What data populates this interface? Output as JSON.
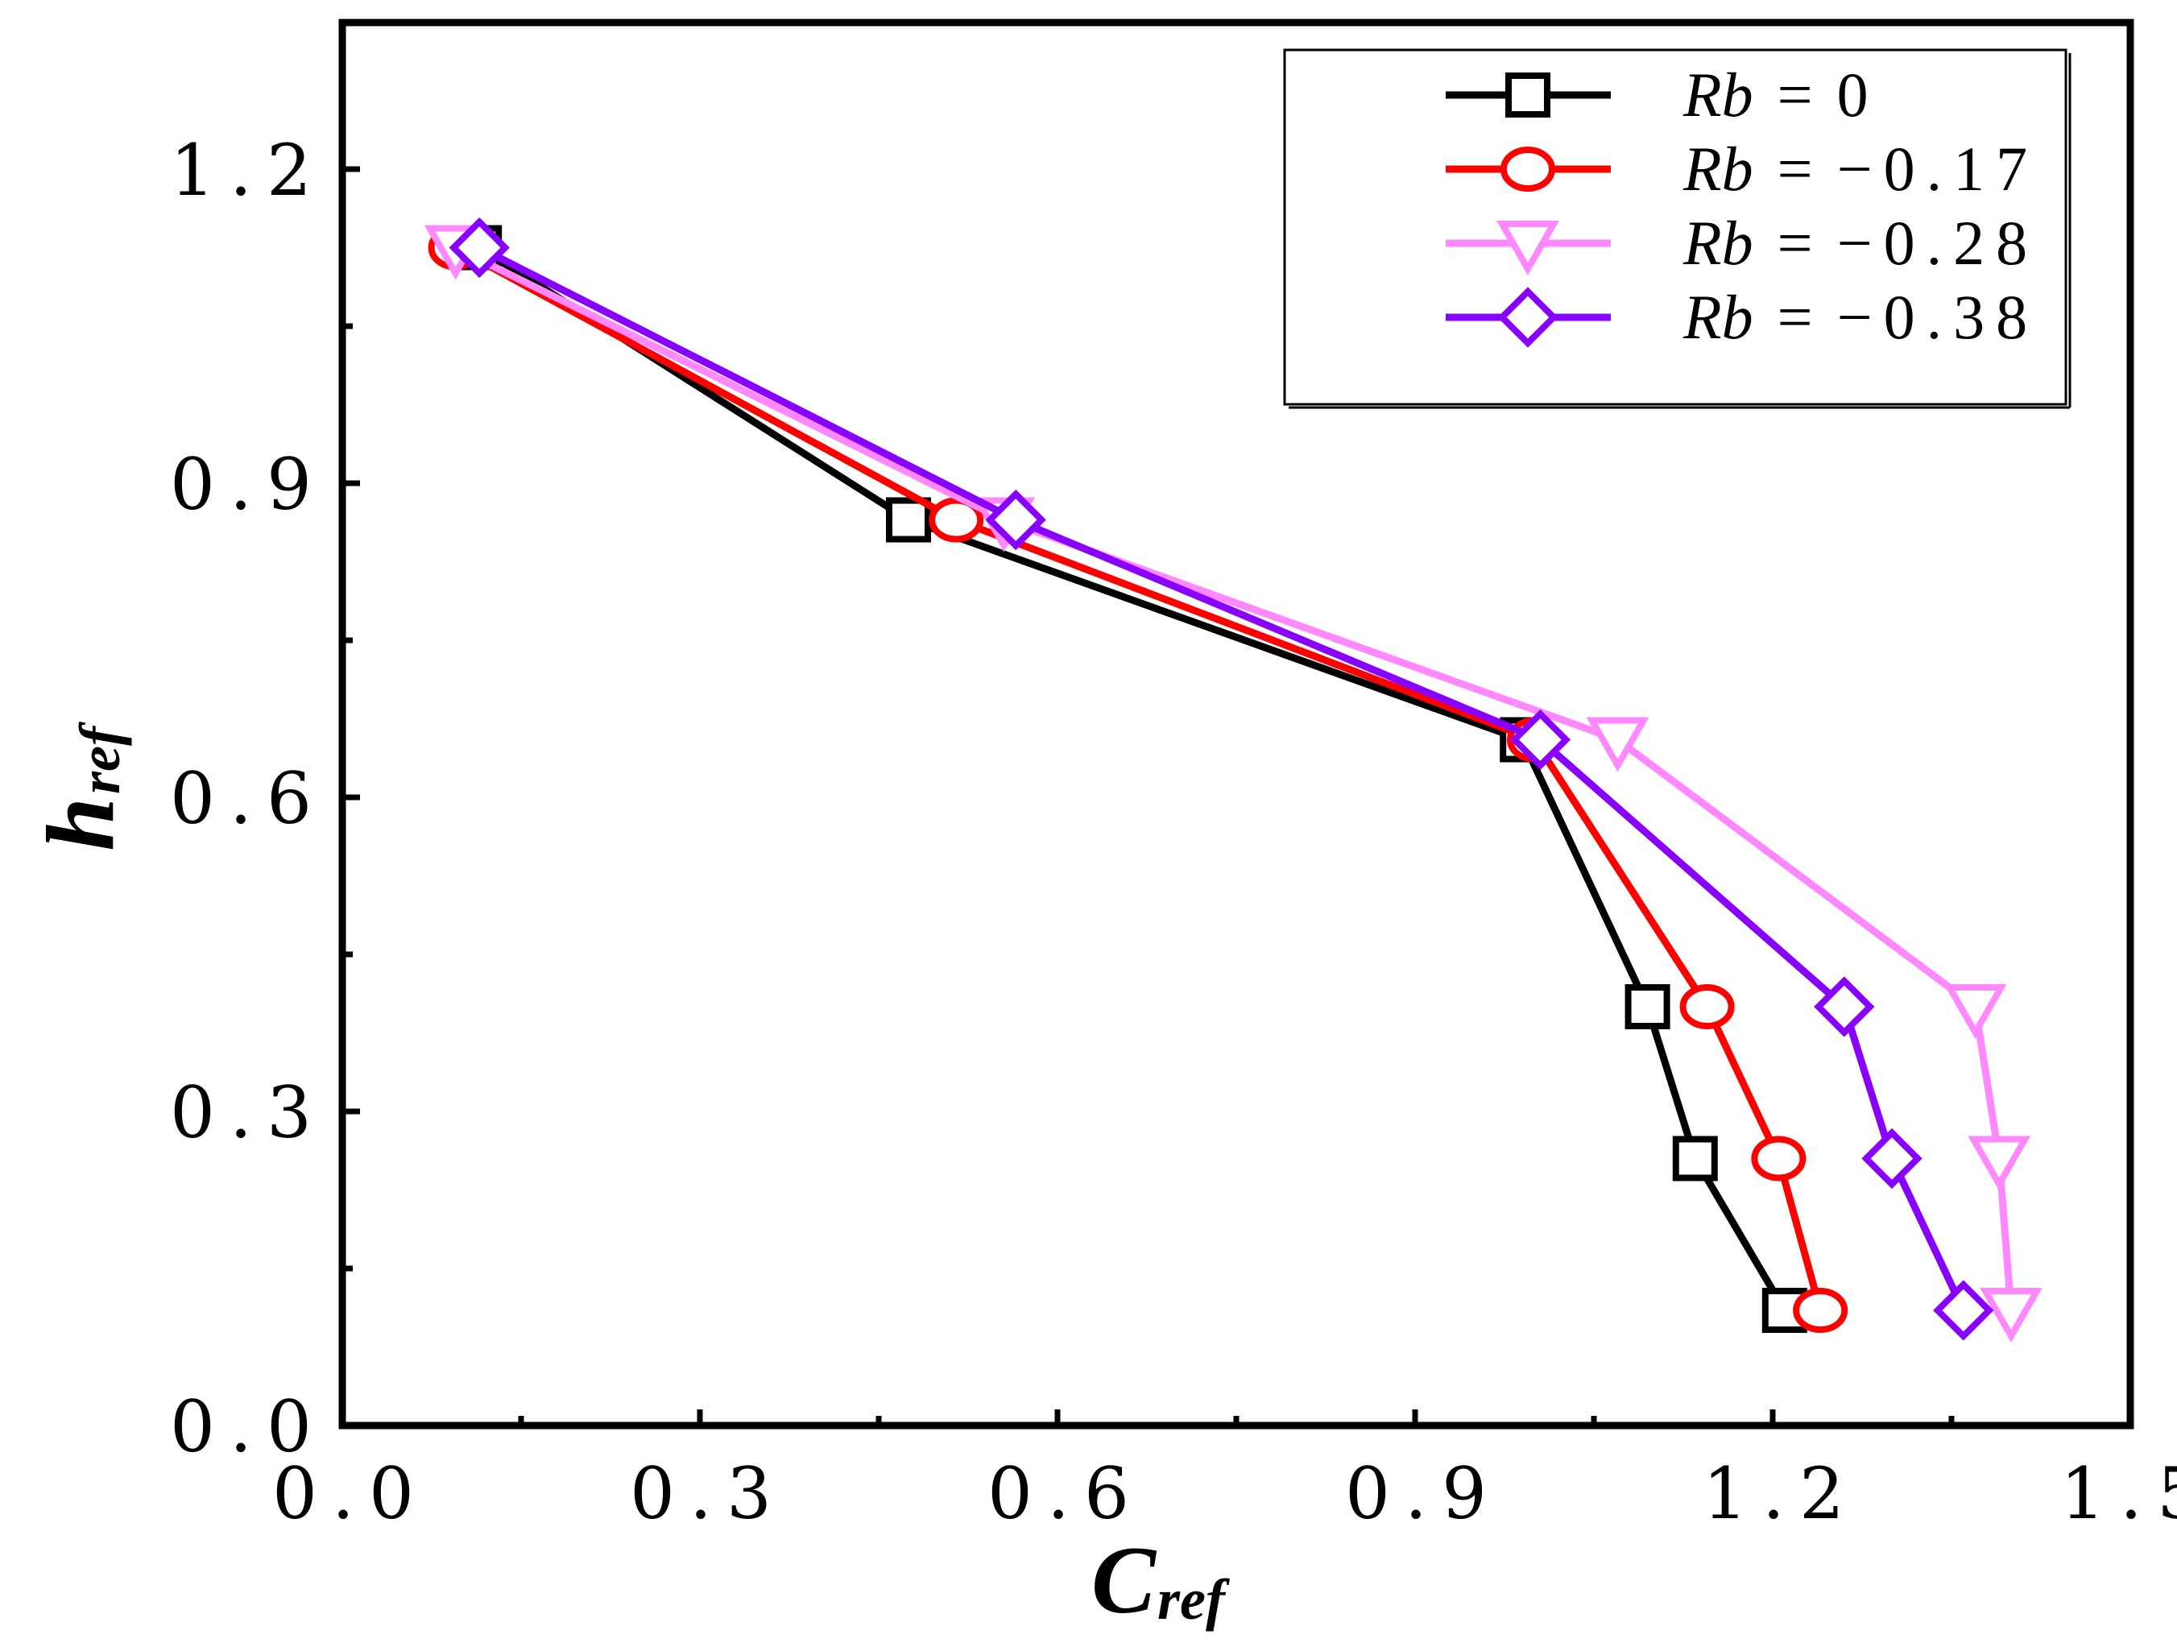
{
  "chart_data": {
    "type": "line",
    "title": "",
    "xlabel": "C",
    "xlabel_sub": "ref",
    "ylabel": "h",
    "ylabel_sub": "ref",
    "xlim": [
      0.0,
      1.5
    ],
    "ylim": [
      0.0,
      1.34
    ],
    "xticks": [
      0.0,
      0.3,
      0.6,
      0.9,
      1.2,
      1.5
    ],
    "xtick_labels": [
      "0.0",
      "0.3",
      "0.6",
      "0.9",
      "1.2",
      "1.5"
    ],
    "yticks": [
      0.0,
      0.3,
      0.6,
      0.9,
      1.2
    ],
    "ytick_labels": [
      "0.0",
      "0.3",
      "0.6",
      "0.9",
      "1.2"
    ],
    "grid": false,
    "legend_position": "top-right",
    "legend_var": "Rb",
    "series": [
      {
        "name": "Rb = 0",
        "value_label": "0",
        "color": "#000000",
        "marker": "square",
        "x": [
          0.115,
          0.475,
          0.99,
          1.095,
          1.135,
          1.21
        ],
        "y": [
          1.125,
          0.865,
          0.655,
          0.4,
          0.255,
          0.11
        ]
      },
      {
        "name": "Rb = -0.17",
        "value_label": "−0.17",
        "color": "#ff0000",
        "marker": "circle",
        "x": [
          0.095,
          0.515,
          1.0,
          1.145,
          1.205,
          1.24
        ],
        "y": [
          1.125,
          0.865,
          0.655,
          0.4,
          0.255,
          0.11
        ]
      },
      {
        "name": "Rb = -0.28",
        "value_label": "−0.28",
        "color": "#ff88ff",
        "marker": "triangle-down",
        "x": [
          0.095,
          0.555,
          1.07,
          1.37,
          1.39,
          1.4
        ],
        "y": [
          1.125,
          0.865,
          0.655,
          0.4,
          0.255,
          0.11
        ]
      },
      {
        "name": "Rb = -0.38",
        "value_label": "−0.38",
        "color": "#8800ff",
        "marker": "diamond",
        "x": [
          0.115,
          0.565,
          1.005,
          1.26,
          1.3,
          1.36
        ],
        "y": [
          1.125,
          0.865,
          0.655,
          0.4,
          0.255,
          0.11
        ]
      }
    ]
  }
}
